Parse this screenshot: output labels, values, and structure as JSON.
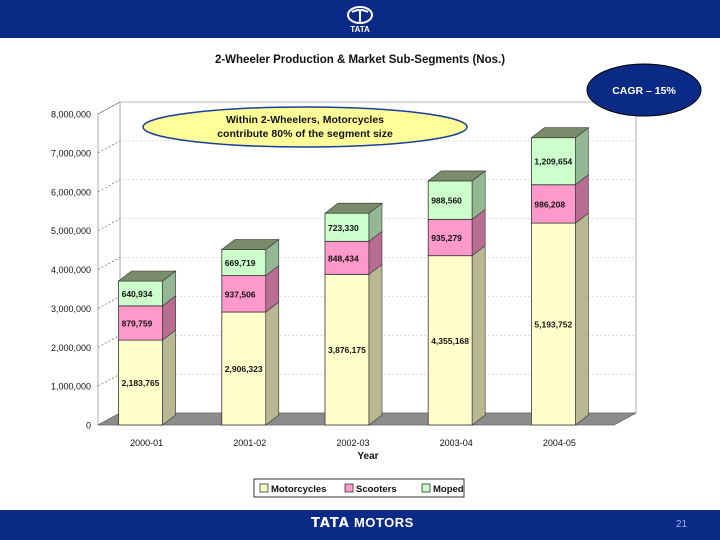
{
  "header": {
    "logo_icon": "tata-logo-icon",
    "bar_color": "#0a2a86"
  },
  "footer": {
    "brand_part1": "TATA",
    "brand_part2": " MOTORS",
    "page_number": "21"
  },
  "callouts": {
    "note": "Within 2-Wheelers, Motorcycles contribute 80% of the segment size",
    "cagr": "CAGR – 15%"
  },
  "chart_data": {
    "type": "bar",
    "stacked": true,
    "three_d": true,
    "title": "2-Wheeler Production & Market Sub-Segments (Nos.)",
    "xlabel": "Year",
    "ylabel": "",
    "ylim": [
      0,
      8000000
    ],
    "yticks": [
      0,
      1000000,
      2000000,
      3000000,
      4000000,
      5000000,
      6000000,
      7000000,
      8000000
    ],
    "ytick_labels": [
      "0",
      "1,000,000",
      "2,000,000",
      "3,000,000",
      "4,000,000",
      "5,000,000",
      "6,000,000",
      "7,000,000",
      "8,000,000"
    ],
    "categories": [
      "2000-01",
      "2001-02",
      "2002-03",
      "2003-04",
      "2004-05"
    ],
    "series": [
      {
        "name": "Motorcycles",
        "color": "#ffffcc",
        "values": [
          2183765,
          2906323,
          3876175,
          4355168,
          5193752
        ],
        "labels": [
          "2,183,765",
          "2,906,323",
          "3,876,175",
          "4,355,168",
          "5,193,752"
        ]
      },
      {
        "name": "Scooters",
        "color": "#ff99cc",
        "values": [
          879759,
          937506,
          848434,
          935279,
          986208
        ],
        "labels": [
          "879,759",
          "937,506",
          "848,434",
          "935,279",
          "986,208"
        ]
      },
      {
        "name": "Moped",
        "color": "#ccffcc",
        "values": [
          640934,
          669719,
          723330,
          988560,
          1209654
        ],
        "labels": [
          "640,934",
          "669,719",
          "723,330",
          "988,560",
          "1,209,654"
        ]
      }
    ],
    "grid": true,
    "legend_position": "bottom"
  }
}
